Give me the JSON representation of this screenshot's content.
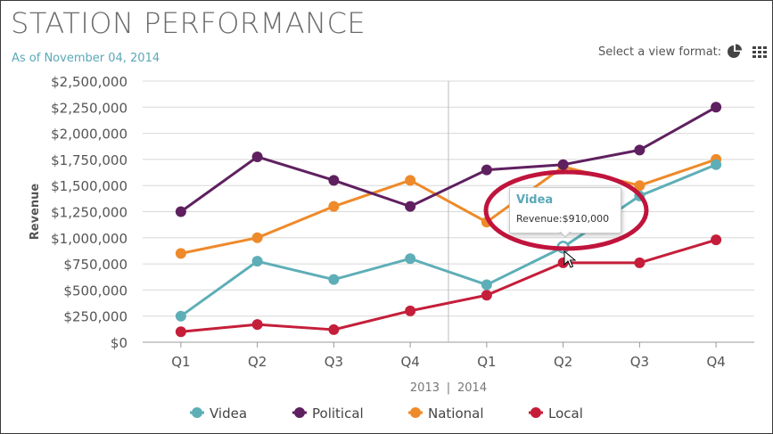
{
  "header": {
    "title": "STATION PERFORMANCE",
    "as_of": "As of November 04, 2014",
    "view_format_label": "Select a view format:",
    "icons": [
      "pie-chart-icon",
      "grid-view-icon"
    ]
  },
  "tooltip": {
    "title": "Videa",
    "label": "Revenue:",
    "value": "$910,000"
  },
  "colors": {
    "Videa": "#5eaeb7",
    "Political": "#5f2060",
    "National": "#ee8a2a",
    "Local": "#c51e3a",
    "highlight": "#c0143c"
  },
  "chart_data": {
    "type": "line",
    "title": "STATION PERFORMANCE",
    "xlabel": "2013 | 2014",
    "ylabel": "Revenue",
    "categories": [
      "Q1",
      "Q2",
      "Q3",
      "Q4",
      "Q1",
      "Q2",
      "Q3",
      "Q4"
    ],
    "year_labels": [
      "2013",
      "|",
      "2014"
    ],
    "ylim": [
      0,
      2500000
    ],
    "yticks": [
      0,
      250000,
      500000,
      750000,
      1000000,
      1250000,
      1500000,
      1750000,
      2000000,
      2250000,
      2500000
    ],
    "ytick_labels": [
      "$0",
      "$250,000",
      "$500,000",
      "$750,000",
      "$1,000,000",
      "$1,250,000",
      "$1,500,000",
      "$1,750,000",
      "$2,000,000",
      "$2,250,000",
      "$2,500,000"
    ],
    "grid": true,
    "legend_position": "bottom",
    "series": [
      {
        "name": "Videa",
        "values": [
          250000,
          775000,
          600000,
          800000,
          550000,
          910000,
          1400000,
          1700000
        ]
      },
      {
        "name": "Political",
        "values": [
          1250000,
          1775000,
          1550000,
          1300000,
          1650000,
          1700000,
          1840000,
          2250000
        ]
      },
      {
        "name": "National",
        "values": [
          850000,
          1000000,
          1300000,
          1550000,
          1150000,
          1680000,
          1500000,
          1750000
        ]
      },
      {
        "name": "Local",
        "values": [
          100000,
          170000,
          120000,
          300000,
          450000,
          760000,
          760000,
          980000
        ]
      }
    ]
  }
}
